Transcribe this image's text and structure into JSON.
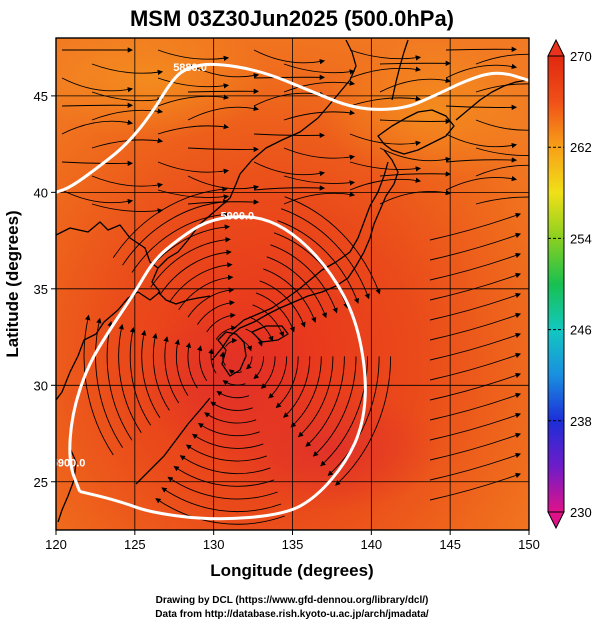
{
  "chart_data": {
    "type": "heatmap",
    "title": "MSM 03Z30Jun2025 (500.0hPa)",
    "xlabel": "Longitude (degrees)",
    "ylabel": "Latitude  (degrees)",
    "xlim": [
      120,
      150
    ],
    "ylim": [
      22.5,
      48
    ],
    "x_ticks": [
      120,
      125,
      130,
      135,
      140,
      145,
      150
    ],
    "y_ticks": [
      25,
      30,
      35,
      40,
      45
    ],
    "colorbar": {
      "min": 230,
      "max": 270,
      "ticks": [
        270,
        262,
        254,
        246,
        238,
        230
      ],
      "colors": [
        "#e0128a",
        "#6e1cc8",
        "#1c2ed8",
        "#1a8fe0",
        "#12c8c0",
        "#18c050",
        "#8ad020",
        "#f0e018",
        "#f8a018",
        "#f05018",
        "#e02810"
      ]
    },
    "contours": [
      {
        "label": "5880.0",
        "points": [
          [
            120,
            40
          ],
          [
            121,
            40.3
          ],
          [
            123,
            41.5
          ],
          [
            124.5,
            42.5
          ],
          [
            126,
            44
          ],
          [
            127.5,
            46
          ],
          [
            128.5,
            46.5
          ],
          [
            130,
            46.7
          ],
          [
            133,
            46.3
          ],
          [
            136,
            45.3
          ],
          [
            139,
            44.3
          ],
          [
            142,
            44.3
          ],
          [
            144,
            45
          ],
          [
            146,
            45.8
          ],
          [
            148,
            46.3
          ],
          [
            150,
            45.8
          ]
        ]
      },
      {
        "label": "5900.0",
        "points": [
          [
            121.5,
            24.5
          ],
          [
            120.8,
            26
          ],
          [
            121,
            28.5
          ],
          [
            122,
            31
          ],
          [
            123.5,
            33
          ],
          [
            125,
            34.8
          ],
          [
            126.2,
            36.5
          ],
          [
            127.8,
            37.6
          ],
          [
            129.5,
            38.5
          ],
          [
            131.5,
            38.8
          ],
          [
            133.5,
            38.6
          ],
          [
            135.5,
            37.6
          ],
          [
            137.5,
            35.8
          ],
          [
            139,
            33.5
          ],
          [
            139.7,
            30.5
          ],
          [
            139.5,
            28
          ],
          [
            138.4,
            26
          ],
          [
            136.5,
            24.2
          ],
          [
            134.5,
            23.3
          ],
          [
            130,
            23
          ],
          [
            126,
            23.4
          ],
          [
            124,
            24
          ],
          [
            121.5,
            24.5
          ]
        ]
      }
    ]
  },
  "footer": {
    "line1": "Drawing by DCL (https://www.gfd-dennou.org/library/dcl/)",
    "line2": "Data from http://database.rish.kyoto-u.ac.jp/arch/jmadata/"
  }
}
